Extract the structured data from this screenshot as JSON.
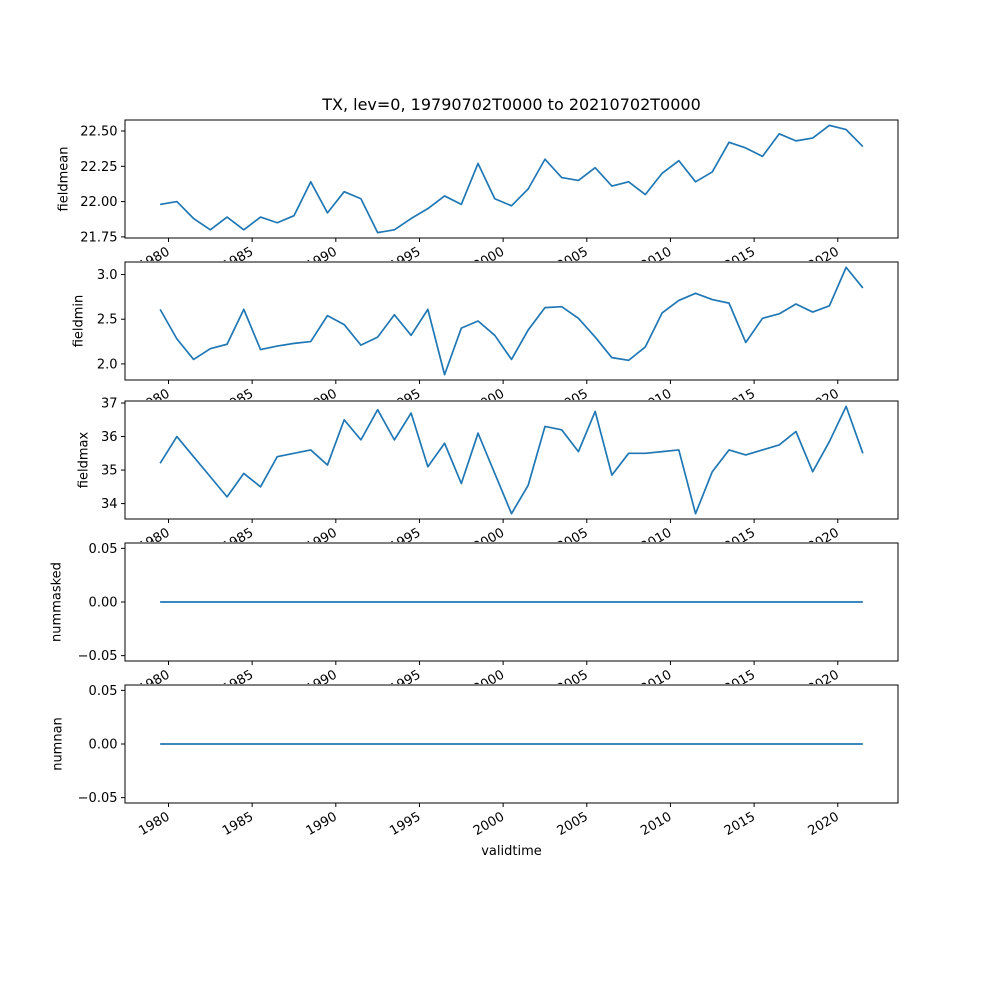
{
  "chart_data": {
    "type": "line",
    "title": "TX, lev=0, 19790702T0000 to 20210702T0000",
    "xlabel": "validtime",
    "line_color": "#1f77b4",
    "background_color": "#ffffff",
    "x": [
      1979,
      1980,
      1981,
      1982,
      1983,
      1984,
      1985,
      1986,
      1987,
      1988,
      1989,
      1990,
      1991,
      1992,
      1993,
      1994,
      1995,
      1996,
      1997,
      1998,
      1999,
      2000,
      2001,
      2002,
      2003,
      2004,
      2005,
      2006,
      2007,
      2008,
      2009,
      2010,
      2011,
      2012,
      2013,
      2014,
      2015,
      2016,
      2017,
      2018,
      2019,
      2020,
      2021
    ],
    "x_point_offset": 0.5,
    "x_ticks": [
      1980,
      1985,
      1990,
      1995,
      2000,
      2005,
      2010,
      2015,
      2020
    ],
    "x_tick_labels": [
      "1980",
      "1985",
      "1990",
      "1995",
      "2000",
      "2005",
      "2010",
      "2015",
      "2020"
    ],
    "x_tick_rotation_deg": 30,
    "xlim": [
      1977.4,
      2023.6
    ],
    "grid": false,
    "legend": "none",
    "subplots": [
      {
        "ylabel": "fieldmean",
        "values": [
          21.98,
          22.0,
          21.88,
          21.8,
          21.89,
          21.8,
          21.89,
          21.85,
          21.9,
          22.14,
          21.92,
          22.07,
          22.02,
          21.78,
          21.8,
          21.88,
          21.95,
          22.04,
          21.98,
          22.27,
          22.02,
          21.97,
          22.09,
          22.3,
          22.17,
          22.15,
          22.24,
          22.11,
          22.14,
          22.05,
          22.2,
          22.29,
          22.14,
          22.21,
          22.42,
          22.38,
          22.32,
          22.48,
          22.43,
          22.45,
          22.54,
          22.51,
          22.39
        ],
        "yticks": [
          21.75,
          22.0,
          22.25,
          22.5
        ],
        "ytick_labels": [
          "21.75",
          "22.00",
          "22.25",
          "22.50"
        ],
        "ylim": [
          21.742,
          22.578
        ]
      },
      {
        "ylabel": "fieldmin",
        "values": [
          2.61,
          2.28,
          2.05,
          2.17,
          2.22,
          2.61,
          2.16,
          2.2,
          2.23,
          2.25,
          2.54,
          2.44,
          2.21,
          2.3,
          2.55,
          2.32,
          2.61,
          1.88,
          2.4,
          2.48,
          2.32,
          2.05,
          2.38,
          2.63,
          2.64,
          2.51,
          2.3,
          2.07,
          2.04,
          2.19,
          2.57,
          2.71,
          2.79,
          2.72,
          2.68,
          2.24,
          2.51,
          2.56,
          2.67,
          2.58,
          2.65,
          3.08,
          2.85
        ],
        "yticks": [
          2.0,
          2.5,
          3.0
        ],
        "ytick_labels": [
          "2.0",
          "2.5",
          "3.0"
        ],
        "ylim": [
          1.82,
          3.14
        ]
      },
      {
        "ylabel": "fieldmax",
        "values": [
          35.2,
          36.0,
          35.4,
          34.8,
          34.2,
          34.9,
          34.5,
          35.4,
          35.5,
          35.6,
          35.15,
          36.5,
          35.9,
          36.8,
          35.9,
          36.7,
          35.1,
          35.8,
          34.6,
          36.1,
          34.9,
          33.7,
          34.55,
          36.3,
          36.2,
          35.55,
          36.75,
          34.85,
          35.5,
          35.5,
          35.55,
          35.6,
          33.7,
          34.95,
          35.6,
          35.45,
          35.6,
          35.75,
          36.15,
          34.95,
          35.85,
          36.9,
          35.5
        ],
        "yticks": [
          34,
          35,
          36,
          37
        ],
        "ytick_labels": [
          "34",
          "35",
          "36",
          "37"
        ],
        "ylim": [
          33.54,
          37.06
        ]
      },
      {
        "ylabel": "nummasked",
        "values": [
          0,
          0,
          0,
          0,
          0,
          0,
          0,
          0,
          0,
          0,
          0,
          0,
          0,
          0,
          0,
          0,
          0,
          0,
          0,
          0,
          0,
          0,
          0,
          0,
          0,
          0,
          0,
          0,
          0,
          0,
          0,
          0,
          0,
          0,
          0,
          0,
          0,
          0,
          0,
          0,
          0,
          0,
          0
        ],
        "yticks": [
          -0.05,
          0.0,
          0.05
        ],
        "ytick_labels": [
          "−0.05",
          "0.00",
          "0.05"
        ],
        "ylim": [
          -0.055,
          0.055
        ]
      },
      {
        "ylabel": "numnan",
        "values": [
          0,
          0,
          0,
          0,
          0,
          0,
          0,
          0,
          0,
          0,
          0,
          0,
          0,
          0,
          0,
          0,
          0,
          0,
          0,
          0,
          0,
          0,
          0,
          0,
          0,
          0,
          0,
          0,
          0,
          0,
          0,
          0,
          0,
          0,
          0,
          0,
          0,
          0,
          0,
          0,
          0,
          0,
          0
        ],
        "yticks": [
          -0.05,
          0.0,
          0.05
        ],
        "ytick_labels": [
          "−0.05",
          "0.00",
          "0.05"
        ],
        "ylim": [
          -0.055,
          0.055
        ]
      }
    ]
  }
}
